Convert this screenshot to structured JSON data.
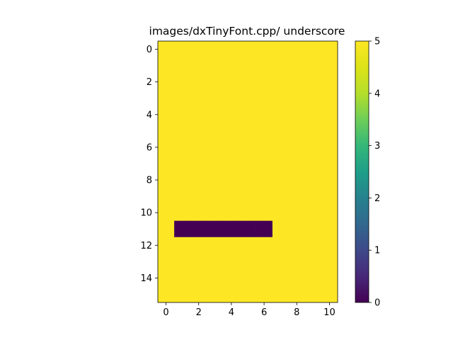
{
  "chart_data": {
    "type": "heatmap",
    "title": "images/dxTinyFont.cpp/ underscore",
    "xlabel": "",
    "ylabel": "",
    "n_cols": 11,
    "n_rows": 16,
    "background_value": 5,
    "cells": [
      {
        "row": 11,
        "col": 1,
        "value": 0
      },
      {
        "row": 11,
        "col": 2,
        "value": 0
      },
      {
        "row": 11,
        "col": 3,
        "value": 0
      },
      {
        "row": 11,
        "col": 4,
        "value": 0
      },
      {
        "row": 11,
        "col": 5,
        "value": 0
      },
      {
        "row": 11,
        "col": 6,
        "value": 0
      }
    ],
    "xlim": [
      -0.5,
      10.5
    ],
    "ylim": [
      15.5,
      -0.5
    ],
    "x_ticks": [
      "0",
      "2",
      "4",
      "6",
      "8",
      "10"
    ],
    "y_ticks": [
      "0",
      "2",
      "4",
      "6",
      "8",
      "10",
      "12",
      "14"
    ],
    "colormap": "viridis",
    "colorbar": {
      "range": [
        0,
        5
      ],
      "ticks": [
        "0",
        "1",
        "2",
        "3",
        "4",
        "5"
      ]
    },
    "colors": {
      "high": "#fde725",
      "low": "#440154"
    }
  }
}
